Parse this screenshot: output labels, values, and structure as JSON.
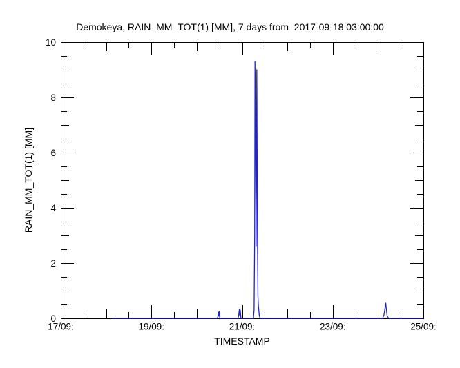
{
  "chart_data": {
    "type": "line",
    "title": "Demokeya, RAIN_MM_TOT(1) [MM], 7 days from  2017-09-18 03:00:00",
    "xlabel": "TIMESTAMP",
    "ylabel": "RAIN_MM_TOT(1) [MM]",
    "xlim": [
      0,
      8
    ],
    "ylim": [
      0,
      10
    ],
    "grid": false,
    "legend": "none",
    "background_color": "#ffffff",
    "axis_color": "#000000",
    "line_color": "#2222cc",
    "x_major_ticks": [
      {
        "day": 0,
        "label": "17/09:"
      },
      {
        "day": 2,
        "label": "19/09:"
      },
      {
        "day": 4,
        "label": "21/09:"
      },
      {
        "day": 6,
        "label": "23/09:"
      },
      {
        "day": 8,
        "label": "25/09:"
      }
    ],
    "x_day_ticks": [
      1,
      3,
      5,
      7
    ],
    "x_minor_ticks": [
      0.5,
      1.5,
      2.5,
      3.5,
      4.5,
      5.5,
      6.5,
      7.5
    ],
    "y_major_ticks": [
      {
        "value": 0,
        "label": "0"
      },
      {
        "value": 2,
        "label": "2"
      },
      {
        "value": 4,
        "label": "4"
      },
      {
        "value": 6,
        "label": "6"
      },
      {
        "value": 8,
        "label": "8"
      },
      {
        "value": 10,
        "label": "10"
      }
    ],
    "y_mid_ticks": [
      1,
      3,
      5,
      7,
      9
    ],
    "y_minor_ticks": [
      0.5,
      1.5,
      2.5,
      3.5,
      4.5,
      5.5,
      6.5,
      7.5,
      8.5,
      9.5
    ],
    "series": [
      {
        "name": "RAIN_MM_TOT(1) [MM]",
        "x_unit": "days_since_2017-09-17_00:00",
        "y_unit": "MM",
        "points": [
          [
            1.125,
            0
          ],
          [
            3.45,
            0
          ],
          [
            3.465,
            0.05
          ],
          [
            3.475,
            0.22
          ],
          [
            3.485,
            0.08
          ],
          [
            3.495,
            0.25
          ],
          [
            3.51,
            0
          ],
          [
            3.91,
            0
          ],
          [
            3.925,
            0.1
          ],
          [
            3.94,
            0.32
          ],
          [
            3.95,
            0.12
          ],
          [
            3.96,
            0.3
          ],
          [
            3.975,
            0
          ],
          [
            4.25,
            0
          ],
          [
            4.265,
            0.3
          ],
          [
            4.278,
            3.0
          ],
          [
            4.285,
            9.3
          ],
          [
            4.3,
            6.15
          ],
          [
            4.31,
            2.6
          ],
          [
            4.325,
            9.0
          ],
          [
            4.34,
            2.9
          ],
          [
            4.35,
            0.8
          ],
          [
            4.36,
            0.45
          ],
          [
            4.38,
            0.1
          ],
          [
            4.4,
            0
          ],
          [
            7.1,
            0
          ],
          [
            7.13,
            0.12
          ],
          [
            7.155,
            0.38
          ],
          [
            7.17,
            0.55
          ],
          [
            7.185,
            0.3
          ],
          [
            7.2,
            0.1
          ],
          [
            7.23,
            0
          ],
          [
            8,
            0
          ]
        ]
      }
    ]
  }
}
